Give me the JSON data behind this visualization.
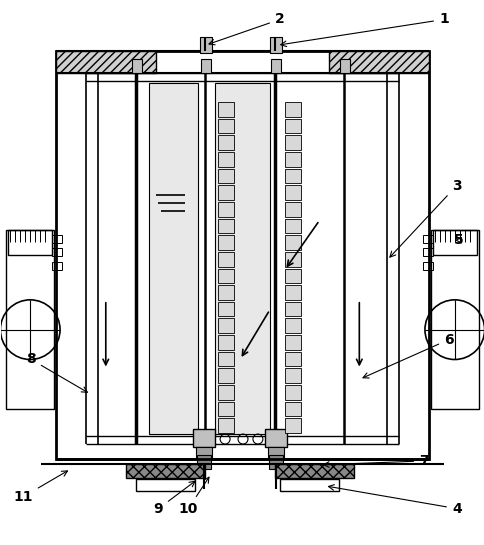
{
  "bg_color": "#ffffff",
  "lc": "#000000",
  "fig_width": 4.85,
  "fig_height": 5.45,
  "dpi": 100
}
